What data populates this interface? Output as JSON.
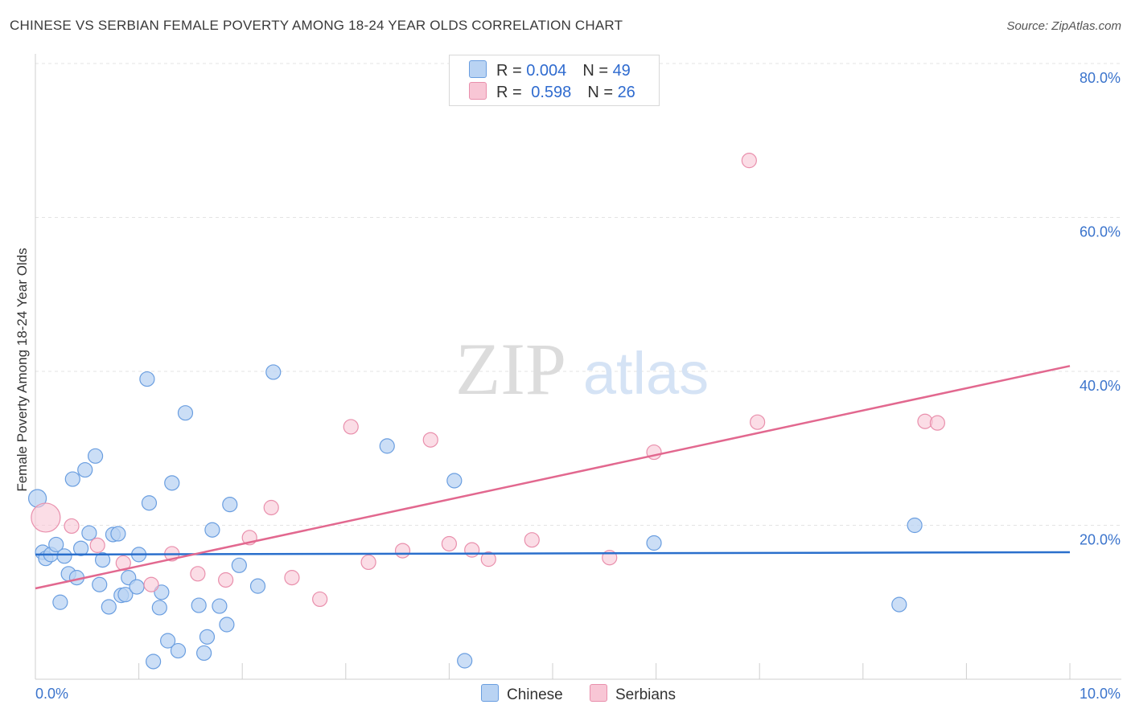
{
  "title": "CHINESE VS SERBIAN FEMALE POVERTY AMONG 18-24 YEAR OLDS CORRELATION CHART",
  "source": "Source: ZipAtlas.com",
  "watermark": {
    "zip": "ZIP",
    "atlas": "atlas"
  },
  "legend_top": [
    {
      "r_label": "R = ",
      "r_value": "0.004",
      "n_label": "N = ",
      "n_value": "49"
    },
    {
      "r_label": "R = ",
      "r_value": "0.598",
      "n_label": "N = ",
      "n_value": "26"
    }
  ],
  "legend_bottom": {
    "series1": "Chinese",
    "series2": "Serbians"
  },
  "chart_data": {
    "type": "scatter",
    "ylabel": "Female Poverty Among 18-24 Year Olds",
    "xlim": [
      0,
      10
    ],
    "ylim": [
      0,
      80
    ],
    "x_ticks": [
      0,
      10
    ],
    "x_tick_labels": [
      "0.0%",
      "10.0%"
    ],
    "y_ticks": [
      20,
      40,
      60,
      80
    ],
    "y_tick_labels": [
      "20.0%",
      "40.0%",
      "60.0%",
      "80.0%"
    ],
    "grid": true,
    "colors": {
      "chinese_fill": "#b9d3f3",
      "chinese_stroke": "#6a9ee0",
      "chinese_line": "#2a6fcc",
      "serbian_fill": "#f8c6d5",
      "serbian_stroke": "#e98fac",
      "serbian_line": "#e2688f",
      "axis_text": "#3b74cc"
    },
    "series": [
      {
        "name": "Chinese",
        "trend": {
          "x": [
            0,
            10
          ],
          "y": [
            16.2,
            16.5
          ]
        },
        "points": [
          [
            0.02,
            23.5
          ],
          [
            0.07,
            16.5
          ],
          [
            0.1,
            15.7
          ],
          [
            0.15,
            16.2
          ],
          [
            0.2,
            17.5
          ],
          [
            0.24,
            10.0
          ],
          [
            0.28,
            16.0
          ],
          [
            0.32,
            13.7
          ],
          [
            0.36,
            26.0
          ],
          [
            0.4,
            13.2
          ],
          [
            0.44,
            17.0
          ],
          [
            0.48,
            27.2
          ],
          [
            0.52,
            19.0
          ],
          [
            0.58,
            29.0
          ],
          [
            0.62,
            12.3
          ],
          [
            0.65,
            15.5
          ],
          [
            0.71,
            9.4
          ],
          [
            0.75,
            18.8
          ],
          [
            0.8,
            18.9
          ],
          [
            0.83,
            10.9
          ],
          [
            0.87,
            11.0
          ],
          [
            0.9,
            13.2
          ],
          [
            0.98,
            12.0
          ],
          [
            1.0,
            16.2
          ],
          [
            1.08,
            39.0
          ],
          [
            1.1,
            22.9
          ],
          [
            1.14,
            2.3
          ],
          [
            1.2,
            9.3
          ],
          [
            1.22,
            11.3
          ],
          [
            1.28,
            5.0
          ],
          [
            1.32,
            25.5
          ],
          [
            1.38,
            3.7
          ],
          [
            1.45,
            34.6
          ],
          [
            1.58,
            9.6
          ],
          [
            1.63,
            3.4
          ],
          [
            1.66,
            5.5
          ],
          [
            1.71,
            19.4
          ],
          [
            1.78,
            9.5
          ],
          [
            1.85,
            7.1
          ],
          [
            1.88,
            22.7
          ],
          [
            1.97,
            14.8
          ],
          [
            2.15,
            12.1
          ],
          [
            2.3,
            39.9
          ],
          [
            3.4,
            30.3
          ],
          [
            4.05,
            25.8
          ],
          [
            4.15,
            2.4
          ],
          [
            5.98,
            17.7
          ],
          [
            8.35,
            9.7
          ],
          [
            8.5,
            20.0
          ]
        ],
        "point_sizes": [
          11,
          9,
          9,
          9,
          9,
          9,
          9,
          9,
          9,
          9,
          9,
          9,
          9,
          9,
          9,
          9,
          9,
          9,
          9,
          9,
          9,
          9,
          9,
          9,
          9,
          9,
          9,
          9,
          9,
          9,
          9,
          9,
          9,
          9,
          9,
          9,
          9,
          9,
          9,
          9,
          9,
          9,
          9,
          9,
          9,
          9,
          9,
          9,
          9
        ]
      },
      {
        "name": "Serbians",
        "trend": {
          "x": [
            0,
            10
          ],
          "y": [
            11.8,
            40.7
          ]
        },
        "points": [
          [
            0.1,
            21.0
          ],
          [
            0.35,
            19.9
          ],
          [
            0.6,
            17.4
          ],
          [
            0.85,
            15.1
          ],
          [
            1.12,
            12.3
          ],
          [
            1.32,
            16.3
          ],
          [
            1.57,
            13.7
          ],
          [
            1.84,
            12.9
          ],
          [
            2.07,
            18.4
          ],
          [
            2.28,
            22.3
          ],
          [
            2.48,
            13.2
          ],
          [
            2.75,
            10.4
          ],
          [
            3.05,
            32.8
          ],
          [
            3.22,
            15.2
          ],
          [
            3.55,
            16.7
          ],
          [
            3.82,
            31.1
          ],
          [
            4.0,
            17.6
          ],
          [
            4.22,
            16.8
          ],
          [
            4.38,
            15.6
          ],
          [
            4.8,
            18.1
          ],
          [
            5.55,
            15.8
          ],
          [
            5.98,
            29.5
          ],
          [
            6.9,
            67.4
          ],
          [
            6.98,
            33.4
          ],
          [
            8.6,
            33.5
          ],
          [
            8.72,
            33.3
          ]
        ],
        "point_sizes": [
          18,
          9,
          9,
          9,
          9,
          9,
          9,
          9,
          9,
          9,
          9,
          9,
          9,
          9,
          9,
          9,
          9,
          9,
          9,
          9,
          9,
          9,
          9,
          9,
          9,
          9
        ]
      }
    ]
  }
}
